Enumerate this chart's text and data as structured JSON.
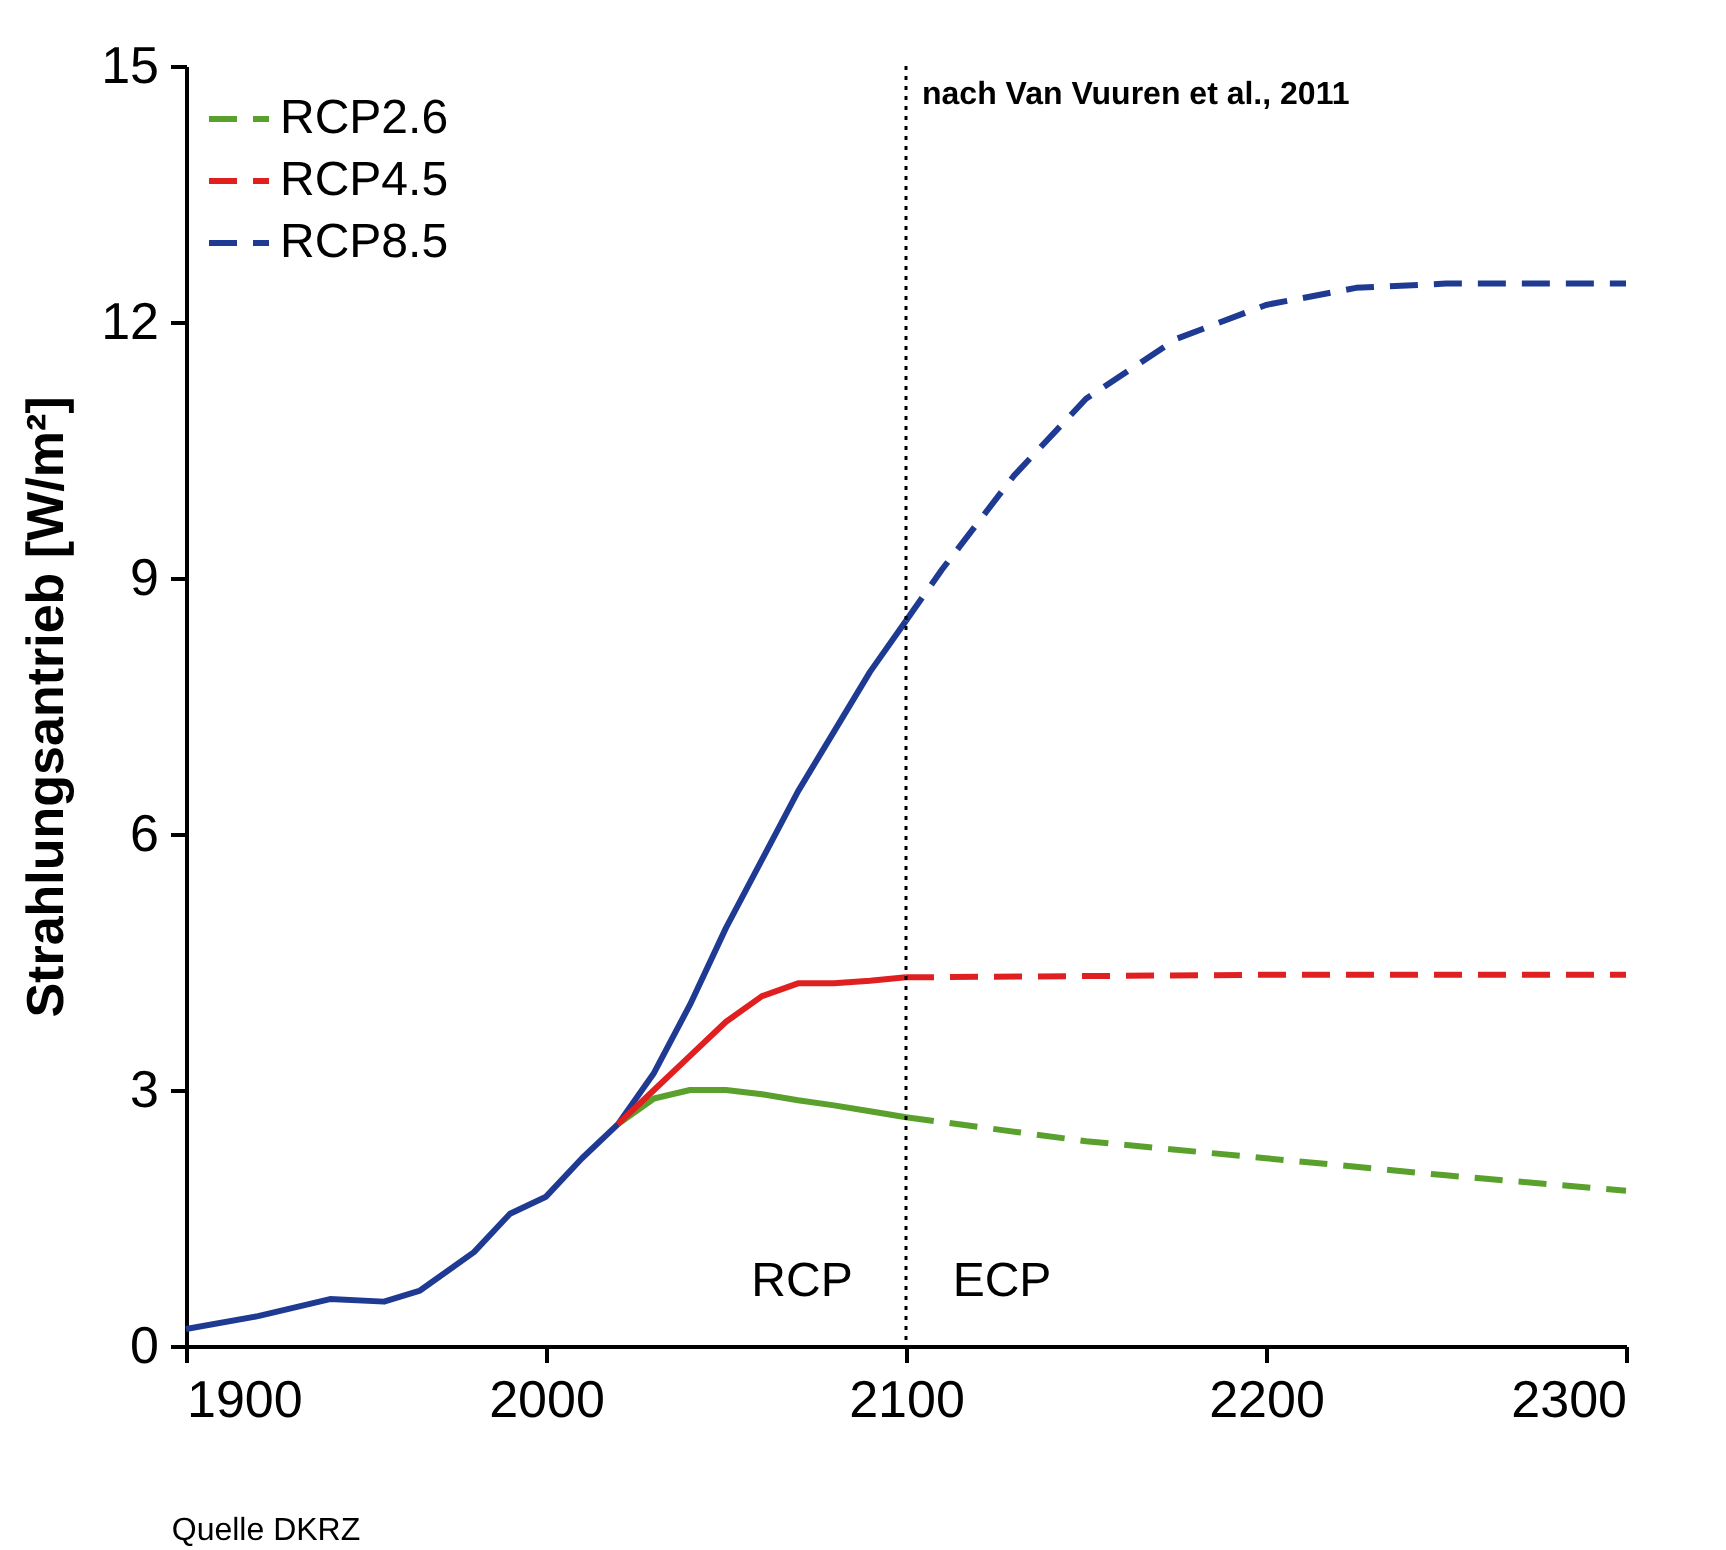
{
  "chart_data": {
    "type": "line",
    "ylabel": "Strahlungsantrieb [W/m²]",
    "xlim": [
      1900,
      2300
    ],
    "xticks": [
      1900,
      2000,
      2100,
      2200,
      2300
    ],
    "ylim": [
      0,
      15
    ],
    "yticks": [
      0,
      3,
      6,
      9,
      12,
      15
    ],
    "grid": false,
    "legend": "top left",
    "series": [
      {
        "color": "#1f3a93",
        "line_style": "solid",
        "x": [
          1900,
          1920,
          1940,
          1955,
          1965,
          1980,
          1990,
          2000,
          2010,
          2020,
          2030,
          2040,
          2050,
          2060,
          2070,
          2080,
          2090,
          2100
        ],
        "values": [
          0.2,
          0.35,
          0.55,
          0.52,
          0.65,
          1.1,
          1.55,
          1.75,
          2.2,
          2.6,
          3.2,
          4.0,
          4.9,
          5.7,
          6.5,
          7.2,
          7.9,
          8.5
        ]
      },
      {
        "color": "#5aa02c",
        "line_style": "solid",
        "x": [
          2020,
          2030,
          2040,
          2050,
          2060,
          2070,
          2080,
          2090,
          2100
        ],
        "values": [
          2.6,
          2.9,
          3.0,
          3.0,
          2.95,
          2.88,
          2.82,
          2.75,
          2.68
        ]
      },
      {
        "color": "#e02020",
        "line_style": "solid",
        "x": [
          2020,
          2030,
          2040,
          2050,
          2060,
          2070,
          2080,
          2090,
          2100
        ],
        "values": [
          2.6,
          3.0,
          3.4,
          3.8,
          4.1,
          4.25,
          4.25,
          4.28,
          4.32
        ]
      },
      {
        "name": "RCP2.6",
        "color": "#5aa02c",
        "line_style": "dashed",
        "x": [
          2100,
          2150,
          2200,
          2250,
          2300
        ],
        "values": [
          2.68,
          2.4,
          2.2,
          2.0,
          1.82
        ]
      },
      {
        "name": "RCP4.5",
        "color": "#e02020",
        "line_style": "dashed",
        "x": [
          2100,
          2200,
          2300
        ],
        "values": [
          4.32,
          4.35,
          4.35
        ]
      },
      {
        "name": "RCP8.5",
        "color": "#1f3a93",
        "line_style": "dashed",
        "x": [
          2100,
          2110,
          2130,
          2150,
          2175,
          2200,
          2225,
          2250,
          2300
        ],
        "values": [
          8.5,
          9.1,
          10.2,
          11.1,
          11.8,
          12.2,
          12.4,
          12.45,
          12.45
        ]
      }
    ],
    "ref_lines": [
      {
        "axis": "x",
        "value": 2100,
        "line_style": "dotted",
        "color": "#000000"
      }
    ],
    "annotations": [
      "nach Van Vuuren et al., 2011",
      "RCP",
      "ECP",
      "Quelle DKRZ"
    ]
  }
}
